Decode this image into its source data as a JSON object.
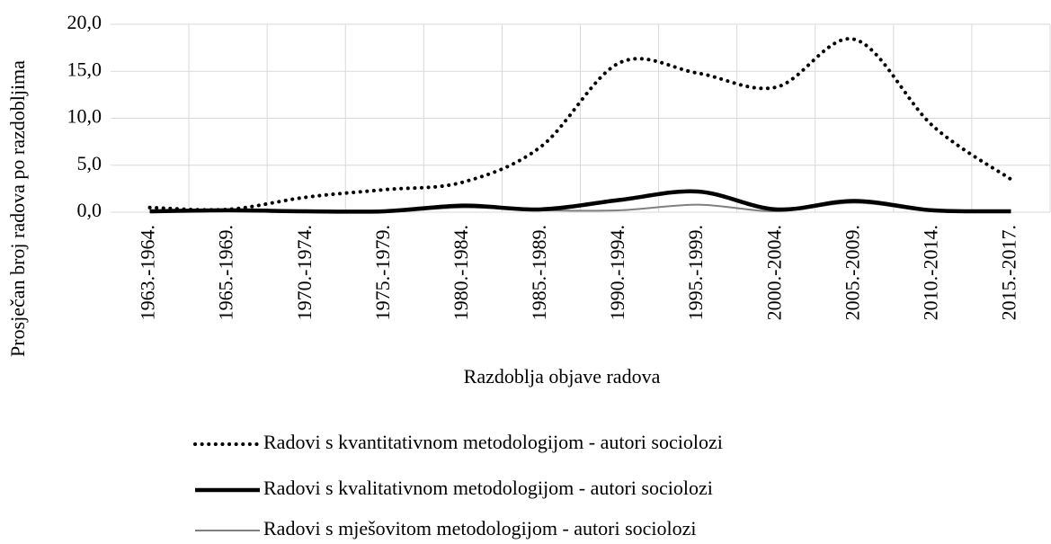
{
  "chart_data": {
    "type": "line",
    "y_label": "Prosječan broj radova po razdobljima",
    "x_label": "Razdoblja objave radova",
    "categories": [
      "1963.-1964.",
      "1965.-1969.",
      "1970.-1974.",
      "1975.-1979.",
      "1980.-1984.",
      "1985.-1989.",
      "1990.-1994.",
      "1995.-1999.",
      "2000.-2004.",
      "2005.-2009.",
      "2010.-2014.",
      "2015.-2017."
    ],
    "series": [
      {
        "name": "Radovi s kvantitativnom metodologijom - autori sociolozi",
        "color": "#000000",
        "style": "dotted",
        "values": [
          0.5,
          0.3,
          1.6,
          2.4,
          3.2,
          7.0,
          15.9,
          14.8,
          13.3,
          18.4,
          9.2,
          3.5
        ]
      },
      {
        "name": "Radovi s kvalitativnom metodologijom - autori sociolozi",
        "color": "#000000",
        "style": "thick",
        "values": [
          0.1,
          0.2,
          0.1,
          0.1,
          0.7,
          0.3,
          1.3,
          2.2,
          0.3,
          1.2,
          0.2,
          0.1
        ]
      },
      {
        "name": "Radovi s mješovitom metodologijom - autori sociolozi",
        "color": "#808080",
        "style": "thin",
        "values": [
          0.0,
          0.1,
          0.0,
          0.0,
          0.5,
          0.2,
          0.2,
          0.8,
          0.1,
          1.0,
          0.1,
          0.1
        ]
      }
    ],
    "ylim": [
      0,
      20
    ],
    "yticks": [
      {
        "value": 0,
        "label": "0,0"
      },
      {
        "value": 5,
        "label": "5,0"
      },
      {
        "value": 10,
        "label": "10,0"
      },
      {
        "value": 15,
        "label": "15,0"
      },
      {
        "value": 20,
        "label": "20,0"
      }
    ],
    "grid": true,
    "smooth": true,
    "legend": "bottom"
  }
}
